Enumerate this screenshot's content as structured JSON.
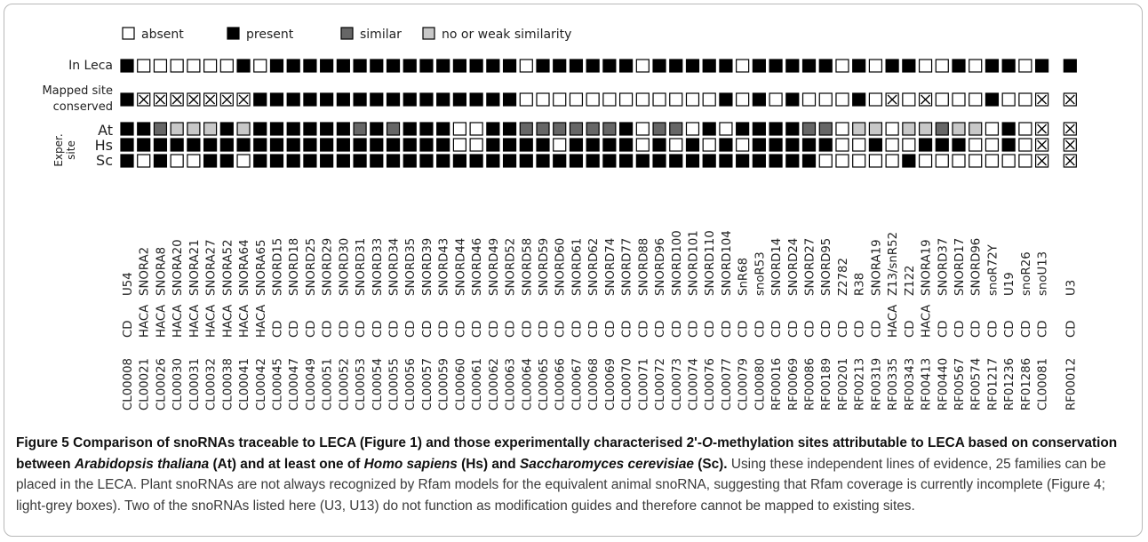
{
  "figure": {
    "legend": [
      {
        "label": "absent",
        "state": "absent"
      },
      {
        "label": "present",
        "state": "present"
      },
      {
        "label": "similar",
        "state": "similar"
      },
      {
        "label": "no or weak similarity",
        "state": "weak"
      }
    ],
    "row_labels": {
      "in_leca": "In Leca",
      "mapped_line1": "Mapped site",
      "mapped_line2": "conserved",
      "exper_line1": "Exper.",
      "exper_line2": "site",
      "at": "At",
      "hs": "Hs",
      "sc": "Sc"
    },
    "state_colors": {
      "absent": "#ffffff",
      "present": "#000000",
      "similar": "#666666",
      "weak": "#c8c8c8",
      "crossed": "#ffffff"
    },
    "codes": {
      "0": "absent",
      "1": "present",
      "2": "similar",
      "3": "weak",
      "x": "crossed"
    },
    "columns": [
      {
        "id": "CL00008",
        "type": "CD",
        "name": "U54",
        "leca": "1",
        "mapped": "1",
        "at": "1",
        "hs": "1",
        "sc": "1"
      },
      {
        "id": "CL00021",
        "type": "HACA",
        "name": "SNORA2",
        "leca": "0",
        "mapped": "x",
        "at": "1",
        "hs": "1",
        "sc": "0"
      },
      {
        "id": "CL00026",
        "type": "HACA",
        "name": "SNORA8",
        "leca": "0",
        "mapped": "x",
        "at": "2",
        "hs": "1",
        "sc": "1"
      },
      {
        "id": "CL00030",
        "type": "HACA",
        "name": "SNORA20",
        "leca": "0",
        "mapped": "x",
        "at": "3",
        "hs": "1",
        "sc": "0"
      },
      {
        "id": "CL00031",
        "type": "HACA",
        "name": "SNORA21",
        "leca": "0",
        "mapped": "x",
        "at": "3",
        "hs": "1",
        "sc": "0"
      },
      {
        "id": "CL00032",
        "type": "HACA",
        "name": "SNORA27",
        "leca": "0",
        "mapped": "x",
        "at": "3",
        "hs": "1",
        "sc": "1"
      },
      {
        "id": "CL00038",
        "type": "HACA",
        "name": "SNORA52",
        "leca": "0",
        "mapped": "x",
        "at": "1",
        "hs": "1",
        "sc": "1"
      },
      {
        "id": "CL00041",
        "type": "HACA",
        "name": "SNORA64",
        "leca": "1",
        "mapped": "x",
        "at": "3",
        "hs": "1",
        "sc": "0"
      },
      {
        "id": "CL00042",
        "type": "HACA",
        "name": "SNORA65",
        "leca": "0",
        "mapped": "1",
        "at": "1",
        "hs": "1",
        "sc": "1"
      },
      {
        "id": "CL00045",
        "type": "CD",
        "name": "SNORD15",
        "leca": "1",
        "mapped": "1",
        "at": "1",
        "hs": "1",
        "sc": "1"
      },
      {
        "id": "CL00047",
        "type": "CD",
        "name": "SNORD18",
        "leca": "1",
        "mapped": "1",
        "at": "1",
        "hs": "1",
        "sc": "1"
      },
      {
        "id": "CL00049",
        "type": "CD",
        "name": "SNORD25",
        "leca": "1",
        "mapped": "1",
        "at": "1",
        "hs": "1",
        "sc": "1"
      },
      {
        "id": "CL00051",
        "type": "CD",
        "name": "SNORD29",
        "leca": "1",
        "mapped": "1",
        "at": "1",
        "hs": "1",
        "sc": "1"
      },
      {
        "id": "CL00052",
        "type": "CD",
        "name": "SNORD30",
        "leca": "1",
        "mapped": "1",
        "at": "1",
        "hs": "1",
        "sc": "1"
      },
      {
        "id": "CL00053",
        "type": "CD",
        "name": "SNORD31",
        "leca": "1",
        "mapped": "1",
        "at": "2",
        "hs": "1",
        "sc": "1"
      },
      {
        "id": "CL00054",
        "type": "CD",
        "name": "SNORD33",
        "leca": "1",
        "mapped": "1",
        "at": "1",
        "hs": "1",
        "sc": "1"
      },
      {
        "id": "CL00055",
        "type": "CD",
        "name": "SNORD34",
        "leca": "1",
        "mapped": "1",
        "at": "2",
        "hs": "1",
        "sc": "1"
      },
      {
        "id": "CL00056",
        "type": "CD",
        "name": "SNORD35",
        "leca": "1",
        "mapped": "1",
        "at": "1",
        "hs": "1",
        "sc": "1"
      },
      {
        "id": "CL00057",
        "type": "CD",
        "name": "SNORD39",
        "leca": "1",
        "mapped": "1",
        "at": "1",
        "hs": "1",
        "sc": "1"
      },
      {
        "id": "CL00059",
        "type": "CD",
        "name": "SNORD43",
        "leca": "1",
        "mapped": "1",
        "at": "1",
        "hs": "1",
        "sc": "1"
      },
      {
        "id": "CL00060",
        "type": "CD",
        "name": "SNORD44",
        "leca": "1",
        "mapped": "1",
        "at": "0",
        "hs": "0",
        "sc": "1"
      },
      {
        "id": "CL00061",
        "type": "CD",
        "name": "SNORD46",
        "leca": "1",
        "mapped": "1",
        "at": "0",
        "hs": "0",
        "sc": "1"
      },
      {
        "id": "CL00062",
        "type": "CD",
        "name": "SNORD49",
        "leca": "1",
        "mapped": "1",
        "at": "1",
        "hs": "1",
        "sc": "1"
      },
      {
        "id": "CL00063",
        "type": "CD",
        "name": "SNORD52",
        "leca": "1",
        "mapped": "1",
        "at": "1",
        "hs": "1",
        "sc": "1"
      },
      {
        "id": "CL00064",
        "type": "CD",
        "name": "SNORD58",
        "leca": "0",
        "mapped": "0",
        "at": "2",
        "hs": "1",
        "sc": "1"
      },
      {
        "id": "CL00065",
        "type": "CD",
        "name": "SNORD59",
        "leca": "1",
        "mapped": "0",
        "at": "2",
        "hs": "1",
        "sc": "1"
      },
      {
        "id": "CL00066",
        "type": "CD",
        "name": "SNORD60",
        "leca": "1",
        "mapped": "0",
        "at": "2",
        "hs": "0",
        "sc": "1"
      },
      {
        "id": "CL00067",
        "type": "CD",
        "name": "SNORD61",
        "leca": "1",
        "mapped": "0",
        "at": "2",
        "hs": "1",
        "sc": "1"
      },
      {
        "id": "CL00068",
        "type": "CD",
        "name": "SNORD62",
        "leca": "1",
        "mapped": "0",
        "at": "2",
        "hs": "1",
        "sc": "1"
      },
      {
        "id": "CL00069",
        "type": "CD",
        "name": "SNORD74",
        "leca": "1",
        "mapped": "0",
        "at": "2",
        "hs": "1",
        "sc": "1"
      },
      {
        "id": "CL00070",
        "type": "CD",
        "name": "SNORD77",
        "leca": "1",
        "mapped": "0",
        "at": "1",
        "hs": "1",
        "sc": "1"
      },
      {
        "id": "CL00071",
        "type": "CD",
        "name": "SNORD88",
        "leca": "0",
        "mapped": "0",
        "at": "0",
        "hs": "0",
        "sc": "1"
      },
      {
        "id": "CL00072",
        "type": "CD",
        "name": "SNORD96",
        "leca": "1",
        "mapped": "0",
        "at": "2",
        "hs": "1",
        "sc": "1"
      },
      {
        "id": "CL00073",
        "type": "CD",
        "name": "SNORD100",
        "leca": "1",
        "mapped": "0",
        "at": "2",
        "hs": "0",
        "sc": "1"
      },
      {
        "id": "CL00074",
        "type": "CD",
        "name": "SNORD101",
        "leca": "1",
        "mapped": "0",
        "at": "0",
        "hs": "1",
        "sc": "1"
      },
      {
        "id": "CL00076",
        "type": "CD",
        "name": "SNORD110",
        "leca": "1",
        "mapped": "0",
        "at": "1",
        "hs": "0",
        "sc": "1"
      },
      {
        "id": "CL00077",
        "type": "CD",
        "name": "SNORD104",
        "leca": "1",
        "mapped": "1",
        "at": "0",
        "hs": "1",
        "sc": "1"
      },
      {
        "id": "CL00079",
        "type": "CD",
        "name": "SnR68",
        "leca": "0",
        "mapped": "0",
        "at": "1",
        "hs": "0",
        "sc": "1"
      },
      {
        "id": "CL00080",
        "type": "CD",
        "name": "snoR53",
        "leca": "1",
        "mapped": "1",
        "at": "1",
        "hs": "1",
        "sc": "1"
      },
      {
        "id": "RF00016",
        "type": "CD",
        "name": "SNORD14",
        "leca": "1",
        "mapped": "0",
        "at": "1",
        "hs": "1",
        "sc": "1"
      },
      {
        "id": "RF00069",
        "type": "CD",
        "name": "SNORD24",
        "leca": "1",
        "mapped": "1",
        "at": "1",
        "hs": "1",
        "sc": "1"
      },
      {
        "id": "RF00086",
        "type": "CD",
        "name": "SNORD27",
        "leca": "1",
        "mapped": "0",
        "at": "2",
        "hs": "1",
        "sc": "1"
      },
      {
        "id": "RF00189",
        "type": "CD",
        "name": "SNORD95",
        "leca": "1",
        "mapped": "0",
        "at": "2",
        "hs": "1",
        "sc": "0"
      },
      {
        "id": "RF00201",
        "type": "CD",
        "name": "Z2782",
        "leca": "0",
        "mapped": "0",
        "at": "0",
        "hs": "0",
        "sc": "0"
      },
      {
        "id": "RF00213",
        "type": "CD",
        "name": "R38",
        "leca": "1",
        "mapped": "1",
        "at": "3",
        "hs": "0",
        "sc": "0"
      },
      {
        "id": "RF00319",
        "type": "CD",
        "name": "SNORA19",
        "leca": "0",
        "mapped": "0",
        "at": "3",
        "hs": "1",
        "sc": "0"
      },
      {
        "id": "RF00335",
        "type": "HACA",
        "name": "Z13/snR52",
        "leca": "1",
        "mapped": "x",
        "at": "0",
        "hs": "0",
        "sc": "0"
      },
      {
        "id": "RF00343",
        "type": "CD",
        "name": "Z122",
        "leca": "1",
        "mapped": "0",
        "at": "3",
        "hs": "0",
        "sc": "1"
      },
      {
        "id": "RF00413",
        "type": "HACA",
        "name": "SNORA19",
        "leca": "0",
        "mapped": "x",
        "at": "3",
        "hs": "1",
        "sc": "0"
      },
      {
        "id": "RF00440",
        "type": "CD",
        "name": "SNORD37",
        "leca": "0",
        "mapped": "0",
        "at": "2",
        "hs": "1",
        "sc": "0"
      },
      {
        "id": "RF00567",
        "type": "CD",
        "name": "SNORD17",
        "leca": "1",
        "mapped": "0",
        "at": "3",
        "hs": "1",
        "sc": "0"
      },
      {
        "id": "RF00574",
        "type": "CD",
        "name": "SNORD96",
        "leca": "0",
        "mapped": "0",
        "at": "3",
        "hs": "0",
        "sc": "0"
      },
      {
        "id": "RF01217",
        "type": "CD",
        "name": "snoR72Y",
        "leca": "1",
        "mapped": "1",
        "at": "0",
        "hs": "0",
        "sc": "0"
      },
      {
        "id": "RF01236",
        "type": "CD",
        "name": "U19",
        "leca": "1",
        "mapped": "0",
        "at": "1",
        "hs": "1",
        "sc": "0"
      },
      {
        "id": "RF01286",
        "type": "CD",
        "name": "snoR26",
        "leca": "0",
        "mapped": "0",
        "at": "0",
        "hs": "0",
        "sc": "0"
      },
      {
        "id": "CL00081",
        "type": "CD",
        "name": "snoU13",
        "leca": "1",
        "mapped": "x",
        "at": "x",
        "hs": "x",
        "sc": "x"
      },
      {
        "id": "RF00012",
        "type": "CD",
        "name": "U3",
        "leca": "1",
        "mapped": "x",
        "at": "x",
        "hs": "x",
        "sc": "x"
      }
    ]
  },
  "caption": {
    "label": "Figure 5",
    "title_1": " Comparison of snoRNAs traceable to LECA (Figure 1) and those experimentally characterised 2'-",
    "title_o": "O",
    "title_2": "-methylation sites attributable to LECA based on conservation between ",
    "at_species": "Arabidopsis thaliana",
    "title_3": " (At) and at least one of ",
    "hs_species": "Homo sapiens",
    "title_4": " (Hs) and ",
    "sc_species": "Saccharomyces cerevisiae",
    "title_5": " (Sc).",
    "body": " Using these independent lines of evidence, 25 families can be placed in the LECA. Plant snoRNAs are not always recognized by Rfam models for the equivalent animal snoRNA, suggesting that Rfam coverage is currently incomplete (Figure 4; light-grey boxes). Two of the snoRNAs listed here (U3, U13) do not function as modification guides and therefore cannot be mapped to existing sites."
  }
}
